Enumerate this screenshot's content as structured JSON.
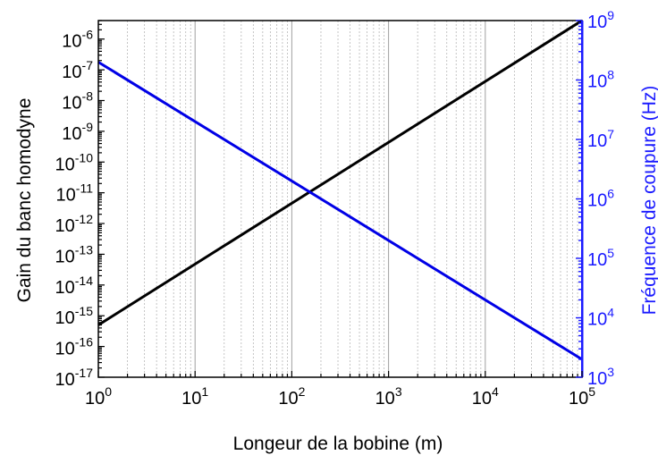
{
  "chart_data": {
    "type": "line",
    "title": "",
    "xlabel": "Longeur de la bobine (m)",
    "ylabel_left": "Gain du banc homodyne",
    "ylabel_right": "Fréquence de coupure (Hz)",
    "x_scale": "log",
    "y_left_scale": "log",
    "y_right_scale": "log",
    "xlim": [
      1,
      100000
    ],
    "ylim_left": [
      1e-17,
      4e-06
    ],
    "ylim_right": [
      1000,
      1000000000
    ],
    "grid": "vertical major and minor (x only)",
    "x_ticks": [
      {
        "base": "10",
        "exp": "0",
        "value": 1
      },
      {
        "base": "10",
        "exp": "1",
        "value": 10
      },
      {
        "base": "10",
        "exp": "2",
        "value": 100
      },
      {
        "base": "10",
        "exp": "3",
        "value": 1000
      },
      {
        "base": "10",
        "exp": "4",
        "value": 10000
      },
      {
        "base": "10",
        "exp": "5",
        "value": 100000
      }
    ],
    "y_left_ticks": [
      {
        "base": "10",
        "exp": "-17",
        "value": 1e-17
      },
      {
        "base": "10",
        "exp": "-16",
        "value": 1e-16
      },
      {
        "base": "10",
        "exp": "-15",
        "value": 1e-15
      },
      {
        "base": "10",
        "exp": "-14",
        "value": 1e-14
      },
      {
        "base": "10",
        "exp": "-13",
        "value": 1e-13
      },
      {
        "base": "10",
        "exp": "-12",
        "value": 1e-12
      },
      {
        "base": "10",
        "exp": "-11",
        "value": 1e-11
      },
      {
        "base": "10",
        "exp": "-10",
        "value": 1e-10
      },
      {
        "base": "10",
        "exp": "-9",
        "value": 1e-09
      },
      {
        "base": "10",
        "exp": "-8",
        "value": 1e-08
      },
      {
        "base": "10",
        "exp": "-7",
        "value": 1e-07
      },
      {
        "base": "10",
        "exp": "-6",
        "value": 1e-06
      }
    ],
    "y_right_ticks": [
      {
        "base": "10",
        "exp": "3",
        "value": 1000
      },
      {
        "base": "10",
        "exp": "4",
        "value": 10000
      },
      {
        "base": "10",
        "exp": "5",
        "value": 100000
      },
      {
        "base": "10",
        "exp": "6",
        "value": 1000000
      },
      {
        "base": "10",
        "exp": "7",
        "value": 10000000
      },
      {
        "base": "10",
        "exp": "8",
        "value": 100000000
      },
      {
        "base": "10",
        "exp": "9",
        "value": 1000000000
      }
    ],
    "series": [
      {
        "axis": "left",
        "color": "#000000",
        "x": [
          1,
          100000
        ],
        "y": [
          5e-16,
          4e-06
        ]
      },
      {
        "axis": "right",
        "color": "#0000e6",
        "x": [
          1,
          100000
        ],
        "y": [
          200000000,
          2000
        ]
      }
    ],
    "colors": {
      "left_axis": "#000000",
      "right_axis": "#1a1aff",
      "grid": "#b8b8b8"
    }
  }
}
